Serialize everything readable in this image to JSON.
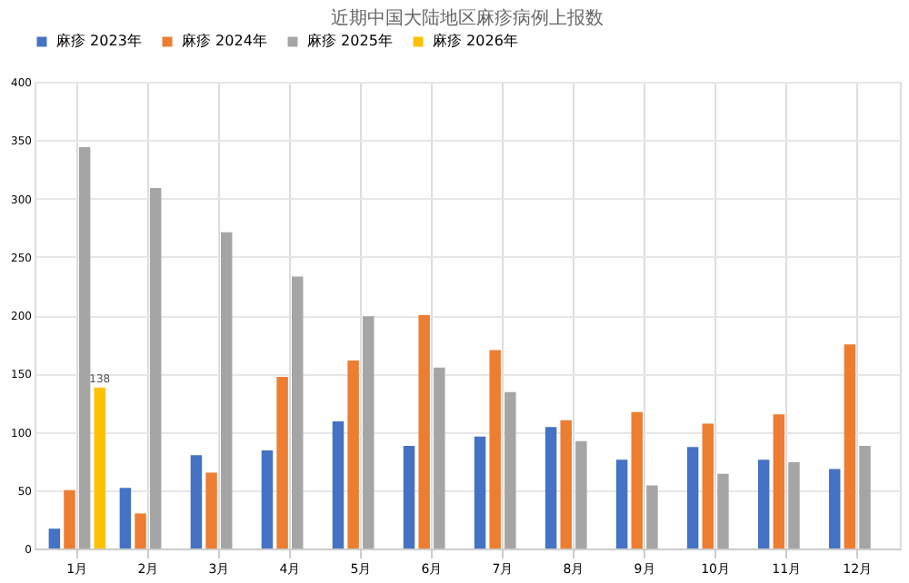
{
  "chart_data": {
    "type": "bar",
    "title": "近期中国大陆地区麻疹病例上报数",
    "categories": [
      "1月",
      "2月",
      "3月",
      "4月",
      "5月",
      "6月",
      "7月",
      "8月",
      "9月",
      "10月",
      "11月",
      "12月"
    ],
    "series": [
      {
        "name": "麻疹 2023年",
        "color": "#4472c4",
        "values": [
          17,
          52,
          80,
          84,
          109,
          88,
          96,
          104,
          76,
          87,
          76,
          68
        ]
      },
      {
        "name": "麻疹 2024年",
        "color": "#ed7d31",
        "values": [
          50,
          30,
          65,
          147,
          161,
          200,
          170,
          110,
          117,
          107,
          115,
          175
        ]
      },
      {
        "name": "麻疹 2025年",
        "color": "#a5a5a5",
        "values": [
          344,
          309,
          271,
          233,
          199,
          155,
          134,
          92,
          54,
          64,
          74,
          88
        ]
      },
      {
        "name": "麻疹 2026年",
        "color": "#ffc000",
        "values": [
          138,
          null,
          null,
          null,
          null,
          null,
          null,
          null,
          null,
          null,
          null,
          null
        ],
        "value_labels": [
          "138",
          null,
          null,
          null,
          null,
          null,
          null,
          null,
          null,
          null,
          null,
          null
        ]
      }
    ],
    "ylim": [
      0,
      400
    ],
    "yticks": [
      0,
      50,
      100,
      150,
      200,
      250,
      300,
      350,
      400
    ],
    "grid": true,
    "legend": "top"
  }
}
